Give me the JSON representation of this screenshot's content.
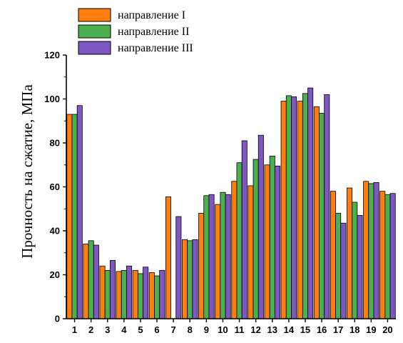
{
  "chart_data": {
    "type": "bar",
    "title": "",
    "xlabel": "",
    "ylabel": "Прочность на сжатие, МПа",
    "ylim": [
      0,
      120
    ],
    "yticks": [
      0,
      20,
      40,
      60,
      80,
      100,
      120
    ],
    "grid": false,
    "legend_position": "top-left",
    "categories": [
      "1",
      "2",
      "3",
      "4",
      "5",
      "6",
      "7",
      "8",
      "9",
      "10",
      "11",
      "12",
      "13",
      "14",
      "15",
      "16",
      "17",
      "18",
      "19",
      "20"
    ],
    "series": [
      {
        "name": "направление I",
        "color": "#ff7f0e",
        "values": [
          93,
          34,
          24,
          21.5,
          22,
          21,
          55.5,
          36,
          48,
          52,
          62.5,
          60.5,
          70,
          99,
          99,
          96.5,
          58,
          59.5,
          62.5,
          58
        ]
      },
      {
        "name": "направление II",
        "color": "#4caf50",
        "values": [
          93,
          35.5,
          22,
          22,
          20.5,
          19.5,
          0,
          35.5,
          56,
          57.5,
          71,
          72.5,
          74,
          101.5,
          102.5,
          93.5,
          48,
          53,
          61.5,
          56.5
        ]
      },
      {
        "name": "направление III",
        "color": "#7e57c2",
        "values": [
          97,
          33.5,
          26.5,
          24,
          23.5,
          22,
          46.5,
          36,
          56.5,
          56.5,
          81,
          83.5,
          69.5,
          101,
          105,
          102,
          43.5,
          47,
          62,
          57
        ]
      }
    ]
  }
}
